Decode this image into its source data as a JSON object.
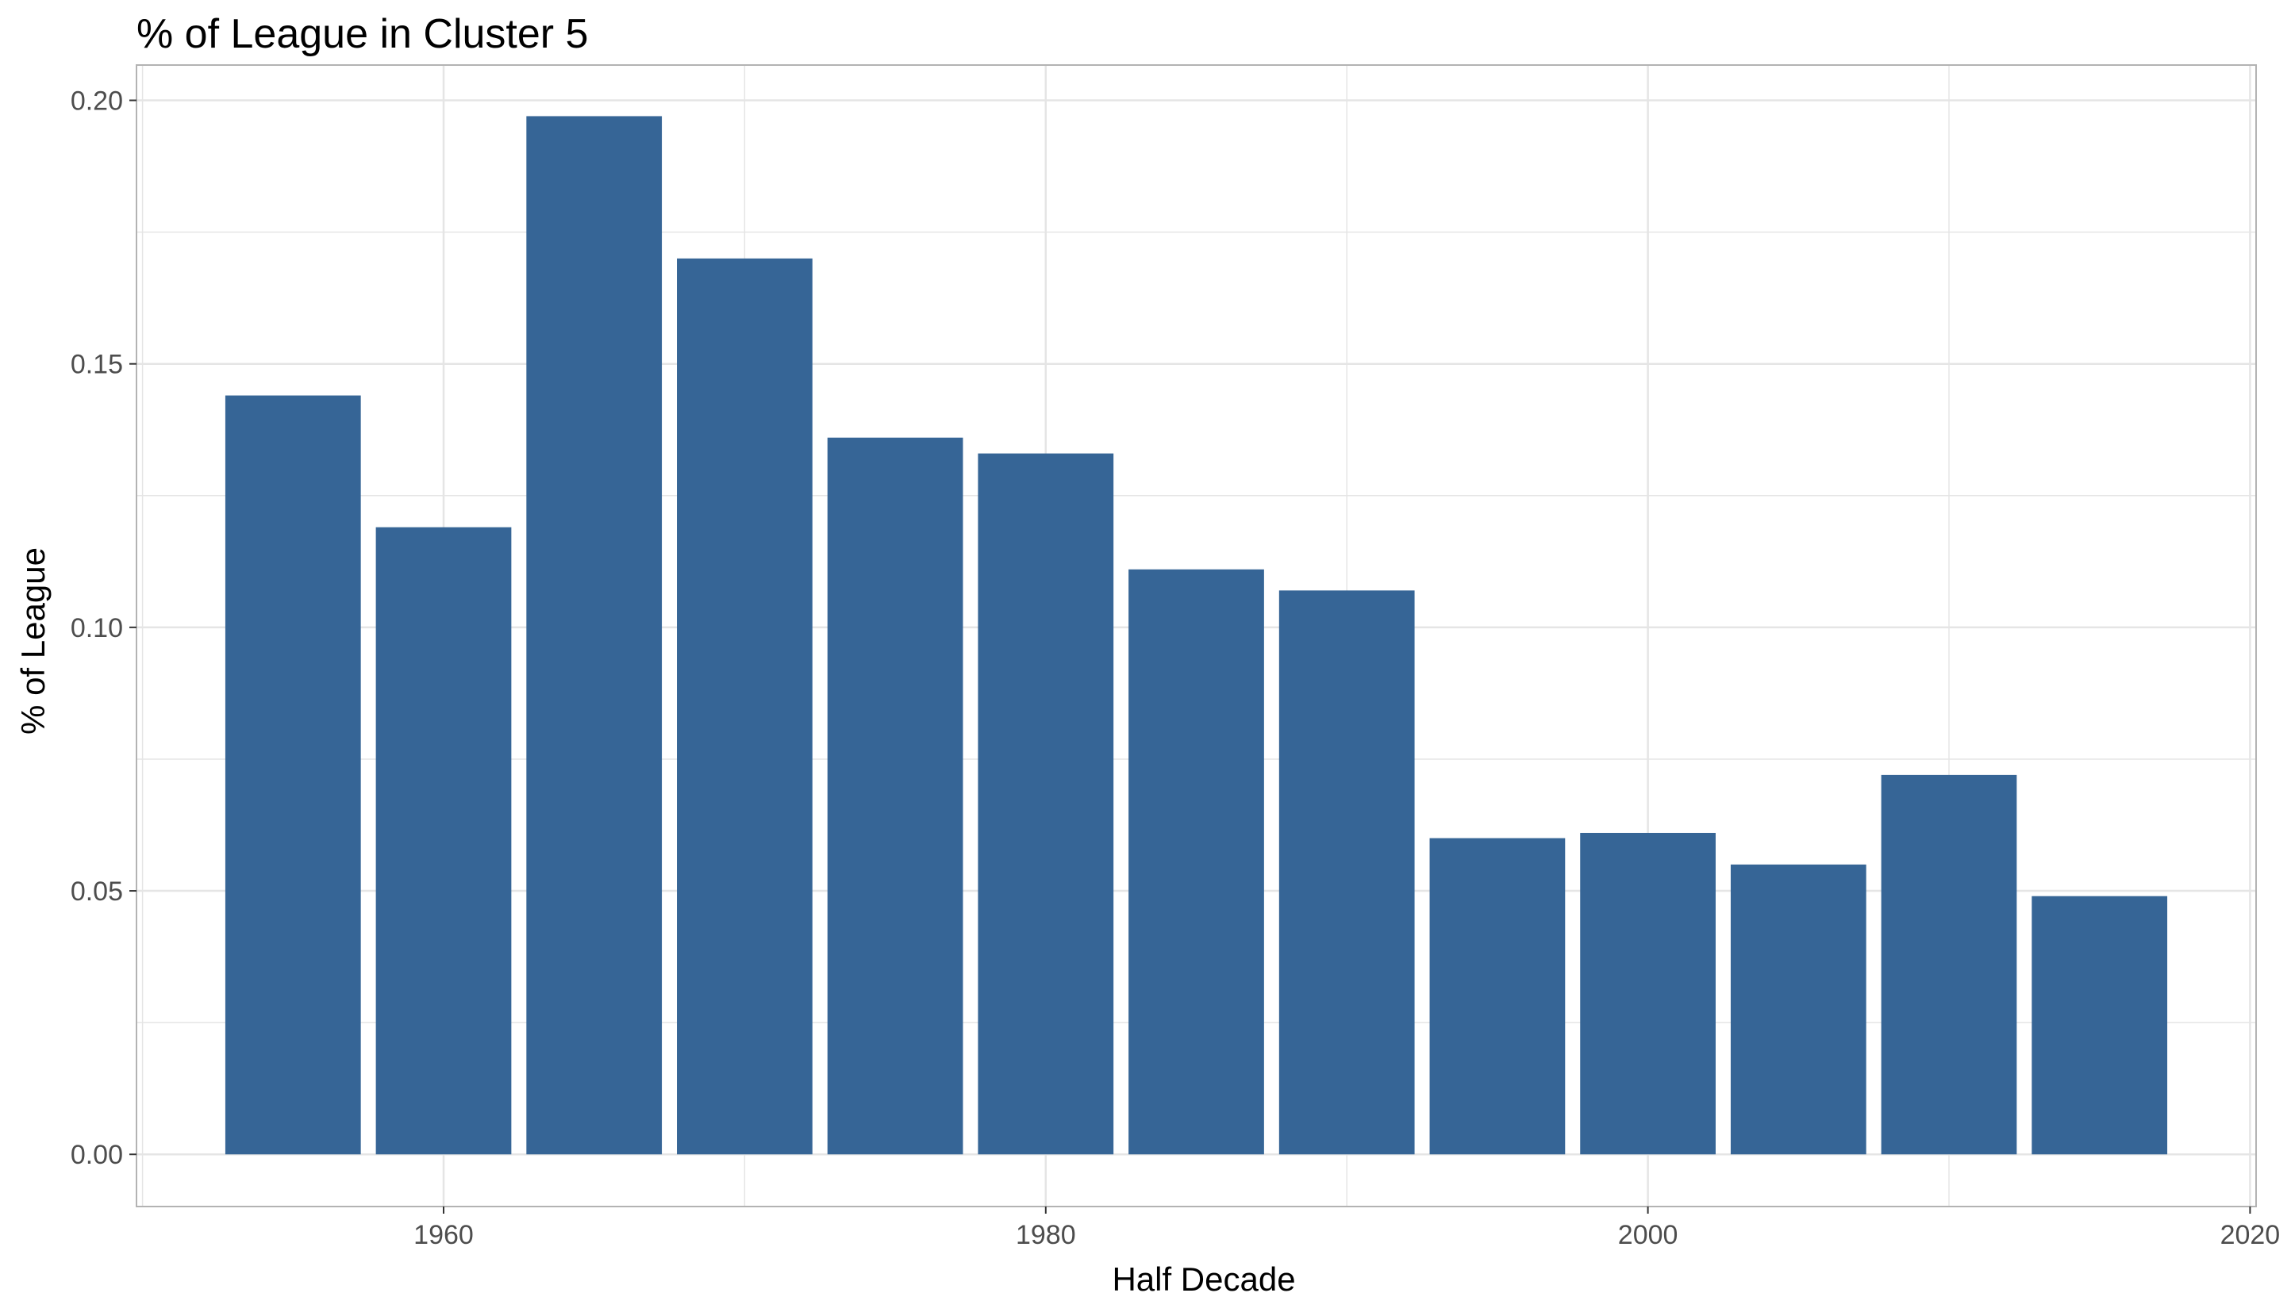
{
  "chart_data": {
    "type": "bar",
    "title": "% of League in Cluster 5",
    "xlabel": "Half Decade",
    "ylabel": "% of League",
    "x": [
      1955,
      1960,
      1965,
      1970,
      1975,
      1980,
      1985,
      1990,
      1995,
      2000,
      2005,
      2010,
      2015
    ],
    "values": [
      0.144,
      0.119,
      0.197,
      0.17,
      0.136,
      0.133,
      0.111,
      0.107,
      0.06,
      0.061,
      0.055,
      0.072,
      0.049
    ],
    "xlim": [
      1949.8,
      2020.2
    ],
    "ylim": [
      -0.0099,
      0.2067
    ],
    "x_ticks": [
      1960,
      1980,
      2000,
      2020
    ],
    "x_tick_labels": [
      "1960",
      "1980",
      "2000",
      "2020"
    ],
    "y_ticks": [
      0,
      0.05,
      0.1,
      0.15,
      0.2
    ],
    "y_tick_labels": [
      "0.00",
      "0.05",
      "0.10",
      "0.15",
      "0.20"
    ],
    "grid": true,
    "legend": "none",
    "colors": {
      "bar": "#366596",
      "grid": "#e5e5e5",
      "panel_border": "#b3b3b3"
    }
  }
}
